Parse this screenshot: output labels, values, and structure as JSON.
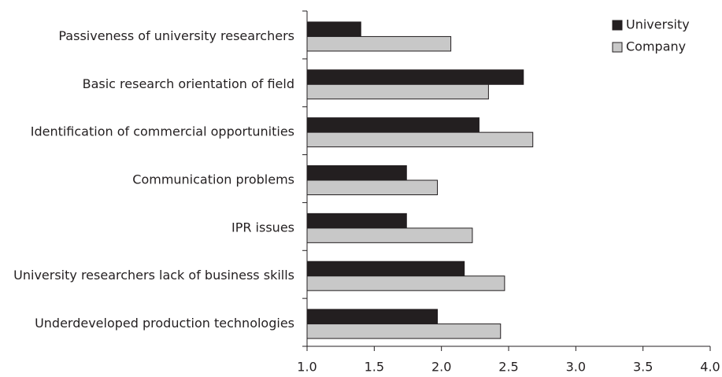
{
  "chart_data": {
    "type": "bar",
    "orientation": "horizontal",
    "categories": [
      "Passiveness of university researchers",
      "Basic research orientation of field",
      "Identification of commercial opportunities",
      "Communication problems",
      "IPR issues",
      "University researchers lack of business skills",
      "Underdeveloped production technologies"
    ],
    "series": [
      {
        "name": "University",
        "color": "#231f20",
        "values": [
          1.4,
          2.61,
          2.28,
          1.74,
          1.74,
          2.17,
          1.97
        ]
      },
      {
        "name": "Company",
        "color": "#c8c8c8",
        "values": [
          2.07,
          2.35,
          2.68,
          1.97,
          2.23,
          2.47,
          2.44
        ]
      }
    ],
    "xlim": [
      1.0,
      4.0
    ],
    "xticks": [
      {
        "value": 1.0,
        "label": "1.0"
      },
      1.5,
      {
        "value": 2.0,
        "label": "2.0"
      },
      2.5,
      {
        "value": 3.0,
        "label": "3.0"
      },
      3.5,
      {
        "value": 4.0,
        "label": "4.0"
      }
    ],
    "legend": "top-right",
    "grid": false
  }
}
